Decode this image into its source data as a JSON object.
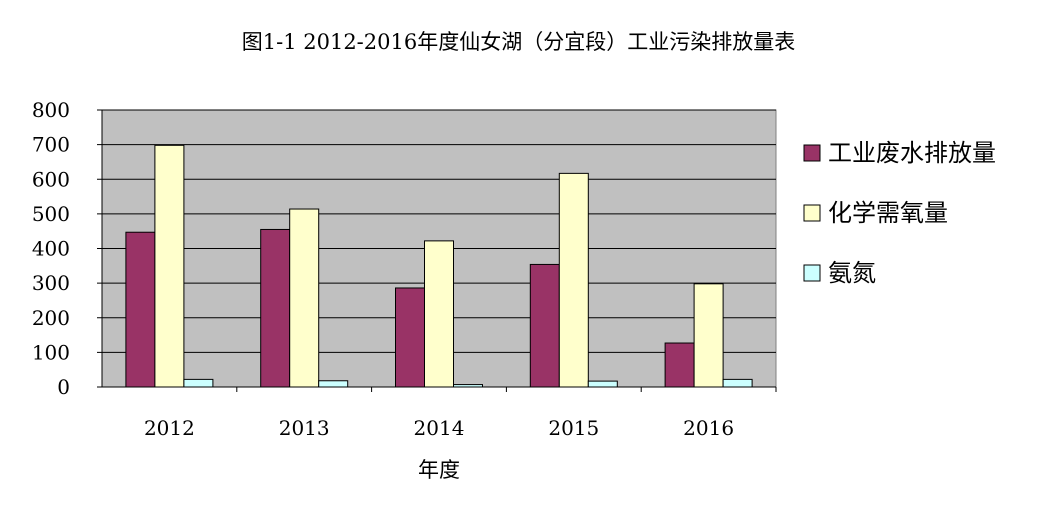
{
  "chart_data": {
    "type": "bar",
    "title": "图1-1 2012-2016年度仙女湖（分宜段）工业污染排放量表",
    "xlabel": "年度",
    "ylabel": "",
    "categories": [
      "2012",
      "2013",
      "2014",
      "2015",
      "2016"
    ],
    "ylim": [
      0,
      800
    ],
    "yticks": [
      0,
      100,
      200,
      300,
      400,
      500,
      600,
      700,
      800
    ],
    "grid": true,
    "legend_position": "right",
    "plot_background": "#c0c0c0",
    "series": [
      {
        "name": "工业废水排放量",
        "color": "#993366",
        "values": [
          447,
          455,
          286,
          354,
          127
        ]
      },
      {
        "name": "化学需氧量",
        "color": "#ffffcc",
        "values": [
          698,
          514,
          422,
          617,
          298
        ]
      },
      {
        "name": "氨氮",
        "color": "#ccffff",
        "values": [
          22,
          18,
          7,
          17,
          22
        ]
      }
    ]
  }
}
